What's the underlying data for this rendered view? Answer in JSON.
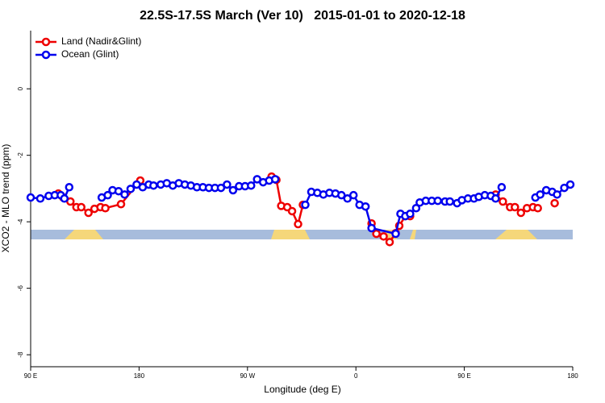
{
  "chart_data": {
    "type": "line",
    "title": "22.5S-17.5S March (Ver 10)   2015-01-01 to 2020-12-18",
    "x_label": "Longitude (deg E)",
    "y_label": "XCO2 - MLO trend (ppm)",
    "xlim": [
      90,
      540
    ],
    "ylim": [
      -8.36,
      1.75
    ],
    "xticks": [
      {
        "value": 90,
        "label": "90 E"
      },
      180,
      {
        "value": 270,
        "label": "90 W"
      },
      {
        "value": 360,
        "label": "0"
      },
      {
        "value": 450,
        "label": "90 E"
      },
      {
        "value": 540,
        "label": "180"
      }
    ],
    "yticks": [
      0,
      -2,
      -4,
      -6,
      -8
    ],
    "legend": "top-left",
    "series": [
      {
        "name": "Land (Nadir&Glint)",
        "color": "#ee0000",
        "x": [
          113,
          117,
          123,
          128,
          132,
          138,
          143,
          148,
          152,
          165,
          181,
          null,
          290,
          294,
          298,
          303,
          307,
          312,
          316,
          null,
          373,
          377,
          383,
          388,
          393,
          396,
          401,
          405,
          null,
          476,
          482,
          488,
          492,
          497,
          502,
          507,
          511,
          null,
          525
        ],
        "values": [
          -3.15,
          -3.27,
          -3.39,
          -3.56,
          -3.56,
          -3.73,
          -3.61,
          -3.56,
          -3.59,
          -3.47,
          -2.76,
          null,
          -2.64,
          -2.74,
          -3.52,
          -3.56,
          -3.68,
          -4.07,
          -3.49,
          null,
          -4.05,
          -4.36,
          -4.44,
          -4.61,
          -4.34,
          -4.12,
          -3.83,
          -3.83,
          null,
          -3.18,
          -3.39,
          -3.56,
          -3.56,
          -3.73,
          -3.59,
          -3.56,
          -3.59,
          null,
          -3.44
        ]
      },
      {
        "name": "Ocean (Glint)",
        "color": "#0000ee",
        "x": [
          90,
          98,
          105,
          110,
          115,
          118,
          122,
          null,
          149,
          154,
          158,
          163,
          168,
          173,
          178,
          183,
          188,
          192,
          198,
          203,
          208,
          213,
          218,
          223,
          228,
          233,
          238,
          243,
          248,
          253,
          258,
          263,
          268,
          273,
          278,
          283,
          288,
          293,
          null,
          318,
          323,
          328,
          333,
          338,
          343,
          348,
          353,
          358,
          363,
          368,
          373,
          393,
          397,
          401,
          405,
          410,
          413,
          418,
          423,
          428,
          434,
          438,
          444,
          448,
          453,
          458,
          462,
          467,
          472,
          476,
          481,
          null,
          509,
          513,
          518,
          523,
          527,
          533,
          538
        ],
        "values": [
          -3.27,
          -3.3,
          -3.22,
          -3.2,
          -3.2,
          -3.3,
          -2.96,
          null,
          -3.27,
          -3.2,
          -3.05,
          -3.08,
          -3.18,
          -3.01,
          -2.88,
          -2.96,
          -2.88,
          -2.91,
          -2.88,
          -2.84,
          -2.91,
          -2.84,
          -2.88,
          -2.91,
          -2.96,
          -2.96,
          -2.98,
          -2.98,
          -2.98,
          -2.88,
          -3.05,
          -2.93,
          -2.93,
          -2.91,
          -2.72,
          -2.81,
          -2.76,
          -2.72,
          null,
          -3.49,
          -3.1,
          -3.13,
          -3.18,
          -3.13,
          -3.15,
          -3.2,
          -3.3,
          -3.2,
          -3.49,
          -3.54,
          -4.19,
          -4.36,
          -3.76,
          -3.83,
          -3.76,
          -3.59,
          -3.42,
          -3.37,
          -3.37,
          -3.37,
          -3.39,
          -3.39,
          -3.44,
          -3.35,
          -3.3,
          -3.3,
          -3.25,
          -3.2,
          -3.22,
          -3.3,
          -2.96,
          null,
          -3.27,
          -3.18,
          -3.05,
          -3.1,
          -3.18,
          -2.98,
          -2.88
        ]
      }
    ]
  }
}
